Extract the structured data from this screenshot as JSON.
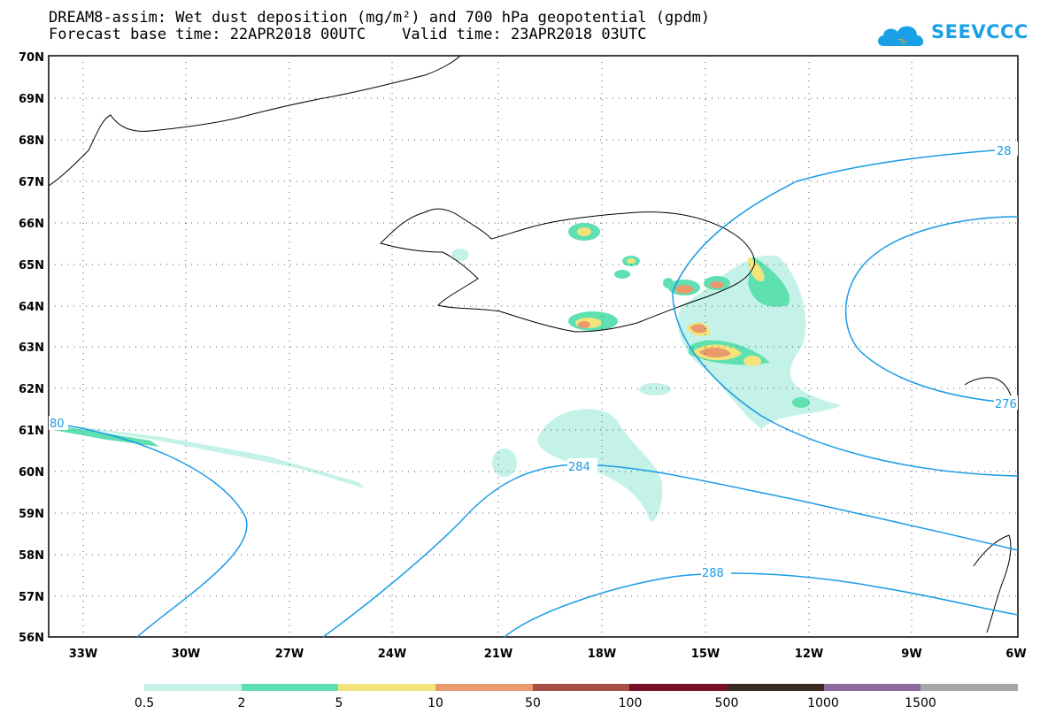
{
  "header": {
    "title_line1": "DREAM8-assim: Wet dust deposition (mg/m²) and 700 hPa geopotential (gpdm)",
    "title_line2": "Forecast base time: 22APR2018 00UTC    Valid time: 23APR2018 03UTC",
    "logo_text": "SEEVCCC",
    "logo_color": "#1aa0e6"
  },
  "map": {
    "lat_labels": [
      "70N",
      "69N",
      "68N",
      "67N",
      "66N",
      "65N",
      "64N",
      "63N",
      "62N",
      "61N",
      "60N",
      "59N",
      "58N",
      "57N",
      "56N"
    ],
    "lon_labels": [
      "33W",
      "30W",
      "27W",
      "24W",
      "21W",
      "18W",
      "15W",
      "12W",
      "9W",
      "6W"
    ],
    "contour_color": "#1a9be6",
    "contour_labels": [
      "28",
      "276",
      "80",
      "284",
      "288"
    ]
  },
  "legend": {
    "colors": [
      "#c4f2e8",
      "#5fe0b0",
      "#f2e47a",
      "#e89a6c",
      "#a64f48",
      "#7a0f2a",
      "#3a2a1e",
      "#8c6a9c",
      "#a6a6a6"
    ],
    "labels": [
      "0.5",
      "2",
      "5",
      "10",
      "50",
      "100",
      "500",
      "1000",
      "1500"
    ]
  }
}
